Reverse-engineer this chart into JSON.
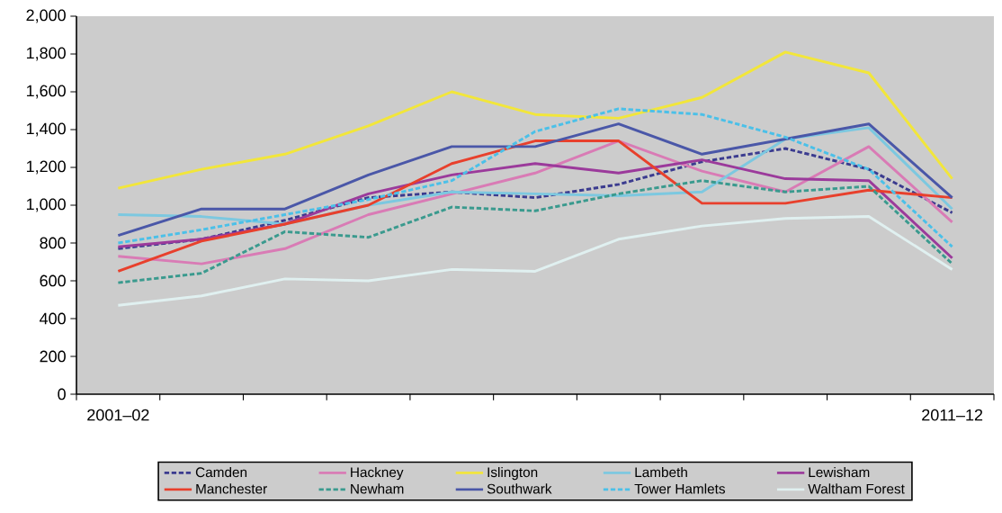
{
  "chart_data": {
    "type": "line",
    "categories": [
      "2001–02",
      null,
      null,
      null,
      null,
      null,
      null,
      null,
      null,
      null,
      "2011–12"
    ],
    "ylim": [
      0,
      2000
    ],
    "yticks": [
      0,
      200,
      400,
      600,
      800,
      {
        "value": 1000,
        "label": "1,000"
      },
      {
        "value": 1200,
        "label": "1,200"
      },
      {
        "value": 1400,
        "label": "1,400"
      },
      {
        "value": 1600,
        "label": "1,600"
      },
      {
        "value": 1800,
        "label": "1,800"
      },
      {
        "value": 2000,
        "label": "2,000"
      }
    ],
    "grid": false,
    "legend": "bottom",
    "marker": "none",
    "series": [
      {
        "name": "Camden",
        "color": "#3b3b8f",
        "line_style": "dashed",
        "values": [
          770,
          820,
          920,
          1040,
          1070,
          1040,
          1110,
          1230,
          1300,
          1190,
          960
        ]
      },
      {
        "name": "Hackney",
        "color": "#d97bb5",
        "line_style": "solid",
        "values": [
          730,
          690,
          770,
          950,
          1060,
          1170,
          1340,
          1180,
          1070,
          1310,
          910
        ]
      },
      {
        "name": "Islington",
        "color": "#f2e63a",
        "line_style": "solid",
        "values": [
          1090,
          1190,
          1270,
          1420,
          1600,
          1480,
          1460,
          1570,
          1810,
          1700,
          1140
        ]
      },
      {
        "name": "Lambeth",
        "color": "#7cc8e0",
        "line_style": "solid",
        "values": [
          950,
          940,
          900,
          1000,
          1070,
          1060,
          1050,
          1070,
          1350,
          1410,
          980
        ]
      },
      {
        "name": "Lewisham",
        "color": "#9b3a9b",
        "line_style": "solid",
        "values": [
          780,
          820,
          900,
          1060,
          1160,
          1220,
          1170,
          1240,
          1140,
          1130,
          720
        ]
      },
      {
        "name": "Manchester",
        "color": "#e8402c",
        "line_style": "solid",
        "values": [
          650,
          810,
          900,
          1000,
          1220,
          1340,
          1340,
          1010,
          1010,
          1080,
          1040
        ]
      },
      {
        "name": "Newham",
        "color": "#3a9a8e",
        "line_style": "dashed",
        "values": [
          590,
          640,
          860,
          830,
          990,
          970,
          1060,
          1130,
          1070,
          1100,
          690
        ]
      },
      {
        "name": "Southwark",
        "color": "#4a57a8",
        "line_style": "solid",
        "values": [
          840,
          980,
          980,
          1160,
          1310,
          1310,
          1430,
          1270,
          1350,
          1430,
          1040
        ]
      },
      {
        "name": "Tower Hamlets",
        "color": "#4bc0e8",
        "line_style": "dashed",
        "values": [
          800,
          870,
          950,
          1030,
          1130,
          1390,
          1510,
          1480,
          1360,
          1190,
          780
        ]
      },
      {
        "name": "Waltham Forest",
        "color": "#e0f0f0",
        "line_style": "solid",
        "values": [
          470,
          520,
          610,
          600,
          660,
          650,
          820,
          890,
          930,
          940,
          660
        ]
      }
    ]
  }
}
